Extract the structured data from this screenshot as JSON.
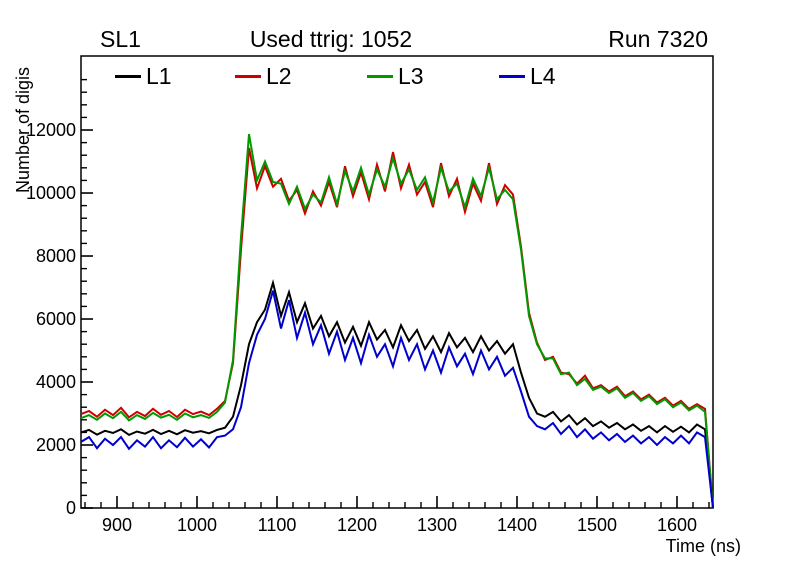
{
  "header": {
    "left": "SL1",
    "center": "Used ttrig: 1052",
    "right": "Run 7320"
  },
  "axes": {
    "y_title": "Number of digis",
    "x_title": "Time (ns)",
    "x_ticks": [
      900,
      1000,
      1100,
      1200,
      1300,
      1400,
      1500,
      1600
    ],
    "y_ticks": [
      0,
      2000,
      4000,
      6000,
      8000,
      10000,
      12000
    ],
    "x_minor_step": 20,
    "y_minor_step": 400
  },
  "legend": {
    "items": [
      {
        "label": "L1",
        "color": "#000000"
      },
      {
        "label": "L2",
        "color": "#cc0000"
      },
      {
        "label": "L3",
        "color": "#009900"
      },
      {
        "label": "L4",
        "color": "#0000cc"
      }
    ]
  },
  "chart_data": {
    "type": "line",
    "title": "Used ttrig: 1052",
    "xlabel": "Time (ns)",
    "ylabel": "Number of digis",
    "xlim": [
      855,
      1645
    ],
    "ylim": [
      0,
      14350
    ],
    "grid": false,
    "legend_position": "top-inside",
    "x_start": 855,
    "x_step": 10,
    "series": [
      {
        "name": "L1",
        "color": "#000000",
        "values": [
          2400,
          2480,
          2330,
          2450,
          2380,
          2500,
          2320,
          2430,
          2360,
          2480,
          2350,
          2450,
          2340,
          2470,
          2390,
          2440,
          2370,
          2480,
          2550,
          2900,
          3900,
          5200,
          5900,
          6300,
          7150,
          6100,
          6850,
          5900,
          6500,
          5700,
          6100,
          5450,
          5900,
          5250,
          5750,
          5150,
          5900,
          5350,
          5650,
          5100,
          5800,
          5300,
          5650,
          5050,
          5450,
          4950,
          5550,
          5100,
          5400,
          4950,
          5450,
          5000,
          5300,
          4900,
          5200,
          4300,
          3500,
          3000,
          2900,
          3050,
          2750,
          2950,
          2650,
          2850,
          2600,
          2750,
          2550,
          2700,
          2500,
          2650,
          2450,
          2600,
          2400,
          2600,
          2420,
          2580,
          2400,
          2650,
          2500,
          0
        ]
      },
      {
        "name": "L2",
        "color": "#cc0000",
        "values": [
          2980,
          3080,
          2900,
          3120,
          2950,
          3180,
          2880,
          3050,
          2920,
          3150,
          2960,
          3080,
          2890,
          3120,
          2980,
          3060,
          2950,
          3150,
          3400,
          4600,
          8200,
          11430,
          10150,
          10850,
          10200,
          10450,
          9750,
          10100,
          9350,
          10050,
          9600,
          10350,
          9550,
          10850,
          9900,
          10650,
          9800,
          10900,
          10050,
          11300,
          10150,
          10900,
          9950,
          10350,
          9550,
          10950,
          9900,
          10450,
          9400,
          10300,
          9750,
          10950,
          9650,
          10250,
          9950,
          8300,
          6200,
          5250,
          4700,
          4800,
          4300,
          4250,
          3950,
          4200,
          3800,
          3900,
          3700,
          3850,
          3550,
          3700,
          3450,
          3600,
          3350,
          3500,
          3250,
          3400,
          3150,
          3300,
          3150,
          0
        ]
      },
      {
        "name": "L3",
        "color": "#009900",
        "values": [
          2850,
          2950,
          2800,
          3000,
          2850,
          3050,
          2780,
          2950,
          2830,
          3020,
          2870,
          2960,
          2800,
          3000,
          2880,
          2950,
          2860,
          3050,
          3350,
          4700,
          8600,
          11870,
          10400,
          11000,
          10350,
          10300,
          9650,
          10200,
          9500,
          9950,
          9700,
          10500,
          9650,
          10700,
          10050,
          10800,
          9950,
          10750,
          10200,
          11100,
          10300,
          10750,
          10100,
          10500,
          9700,
          10800,
          10050,
          10300,
          9550,
          10450,
          9900,
          10800,
          9800,
          10100,
          9800,
          8200,
          6100,
          5200,
          4750,
          4750,
          4250,
          4300,
          3900,
          4100,
          3750,
          3850,
          3650,
          3800,
          3500,
          3650,
          3400,
          3550,
          3300,
          3450,
          3200,
          3350,
          3100,
          3250,
          3050,
          0
        ]
      },
      {
        "name": "L4",
        "color": "#0000cc",
        "values": [
          2100,
          2250,
          1900,
          2200,
          2000,
          2250,
          1880,
          2150,
          1950,
          2250,
          1900,
          2150,
          1930,
          2230,
          1950,
          2180,
          1920,
          2250,
          2300,
          2500,
          3200,
          4600,
          5500,
          6000,
          6900,
          5700,
          6600,
          5400,
          6200,
          5200,
          5800,
          4900,
          5600,
          4700,
          5400,
          4600,
          5500,
          4800,
          5200,
          4500,
          5400,
          4700,
          5200,
          4400,
          5000,
          4300,
          5100,
          4500,
          4900,
          4250,
          5000,
          4400,
          4800,
          4200,
          4450,
          3700,
          2900,
          2600,
          2500,
          2700,
          2350,
          2600,
          2250,
          2500,
          2200,
          2400,
          2150,
          2350,
          2100,
          2300,
          2050,
          2250,
          2000,
          2250,
          2050,
          2300,
          2050,
          2400,
          2250,
          0
        ]
      }
    ]
  }
}
